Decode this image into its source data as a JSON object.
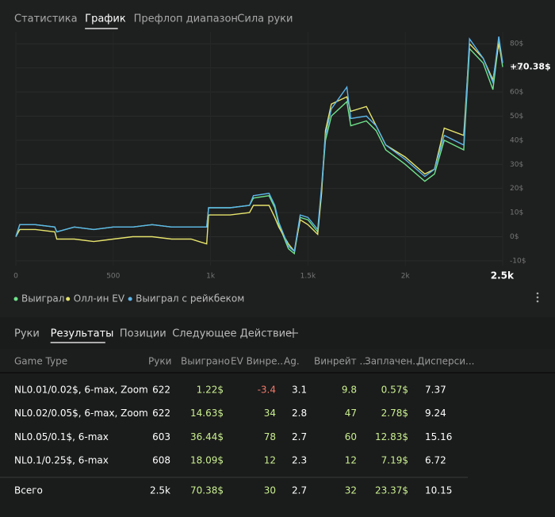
{
  "top_tabs": [
    "Статистика",
    "График",
    "Префлоп диапазон",
    "Сила руки"
  ],
  "active_top_tab": 1,
  "chart_data": {
    "type": "line",
    "x": [
      0,
      20,
      100,
      200,
      210,
      300,
      400,
      500,
      600,
      700,
      800,
      900,
      980,
      990,
      1100,
      1200,
      1220,
      1300,
      1330,
      1350,
      1400,
      1430,
      1460,
      1500,
      1550,
      1570,
      1590,
      1620,
      1700,
      1720,
      1800,
      1850,
      1900,
      2000,
      2100,
      2150,
      2200,
      2300,
      2330,
      2400,
      2450,
      2480,
      2500
    ],
    "series": [
      {
        "name": "Выиграл",
        "color": "#6fe38a",
        "values": [
          0,
          5,
          5,
          4,
          2,
          4,
          3,
          4,
          4,
          5,
          4,
          4,
          4,
          12,
          12,
          13,
          16,
          17,
          12,
          5,
          -5,
          -7,
          8,
          7,
          2,
          20,
          40,
          50,
          56,
          46,
          48,
          44,
          36,
          30,
          23,
          26,
          40,
          36,
          78,
          72,
          61,
          81,
          70.38
        ]
      },
      {
        "name": "Олл-ин EV",
        "color": "#e6e46c",
        "values": [
          0,
          3,
          3,
          2,
          -1,
          -1,
          -2,
          -1,
          0,
          0,
          -1,
          -1,
          -3,
          9,
          9,
          10,
          13,
          13,
          8,
          4,
          -3,
          -6,
          7,
          5,
          1,
          18,
          44,
          55,
          58,
          52,
          54,
          46,
          38,
          33,
          26,
          28,
          45,
          42,
          80,
          74,
          65,
          80,
          72
        ]
      },
      {
        "name": "Выиграл с рейкбеком",
        "color": "#5cb6ea",
        "values": [
          0,
          5,
          5,
          4,
          2,
          4,
          3,
          4,
          4,
          5,
          4,
          4,
          4,
          12,
          12,
          13,
          17,
          18,
          13,
          6,
          -4,
          -6,
          9,
          8,
          3,
          21,
          42,
          53,
          62,
          49,
          50,
          46,
          38,
          32,
          25,
          28,
          42,
          38,
          82,
          74,
          64,
          83,
          72
        ]
      }
    ],
    "xlim": [
      0,
      2500
    ],
    "ylim": [
      -12,
      85
    ],
    "xticks": [
      0,
      500,
      {
        "value": 1000,
        "label": "1k"
      },
      {
        "value": 1500,
        "label": "1.5k"
      },
      {
        "value": 2000,
        "label": "2k"
      },
      {
        "value": 2500,
        "label": "2.5k"
      }
    ],
    "yticks": [
      {
        "value": -10,
        "label": "-10$"
      },
      {
        "value": 0,
        "label": "0$"
      },
      {
        "value": 10,
        "label": "10$"
      },
      {
        "value": 20,
        "label": "20$"
      },
      {
        "value": 30,
        "label": "30$"
      },
      {
        "value": 40,
        "label": "40$"
      },
      {
        "value": 50,
        "label": "50$"
      },
      {
        "value": 60,
        "label": "60$"
      },
      {
        "value": 70,
        "label": "70$"
      },
      {
        "value": 80,
        "label": "80$"
      }
    ],
    "end_label": {
      "value": 70.38,
      "label": "+70.38$"
    },
    "grid": true
  },
  "bottom_tabs": [
    "Руки",
    "Результаты",
    "Позиции",
    "Следующее Действие"
  ],
  "active_bottom_tab": 1,
  "table": {
    "columns": [
      "Game Type",
      "Руки",
      "Выиграно",
      "EV Винре...",
      "Ag.",
      "Винрейт ...",
      "Заплачен...",
      "Дисперси..."
    ],
    "rows": [
      [
        "NL0.01/0.02$, 6-max, Zoom",
        "622",
        "1.22$",
        "-3.4",
        "3.1",
        "9.8",
        "0.57$",
        "7.37"
      ],
      [
        "NL0.02/0.05$, 6-max, Zoom",
        "622",
        "14.63$",
        "34",
        "2.8",
        "47",
        "2.78$",
        "9.24"
      ],
      [
        "NL0.05/0.1$, 6-max",
        "603",
        "36.44$",
        "78",
        "2.7",
        "60",
        "12.83$",
        "15.16"
      ],
      [
        "NL0.1/0.25$, 6-max",
        "608",
        "18.09$",
        "12",
        "2.3",
        "12",
        "7.19$",
        "6.72"
      ]
    ],
    "total": [
      "Всего",
      "2.5k",
      "70.38$",
      "30",
      "2.7",
      "32",
      "23.37$",
      "10.15"
    ]
  }
}
